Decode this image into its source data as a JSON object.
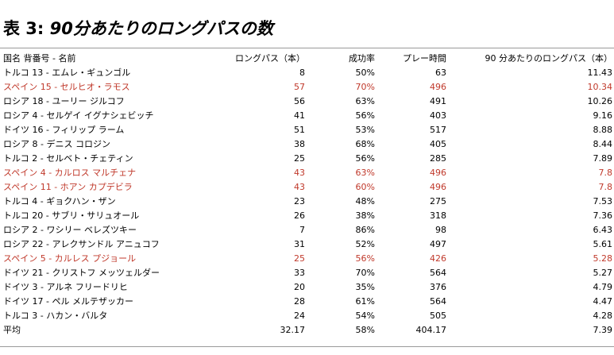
{
  "title": {
    "prefix": "表 3:",
    "number": "90",
    "text": "分あたりのロングパスの数"
  },
  "table": {
    "headers": {
      "player": "国名 背番号 - 名前",
      "long_passes": "ロングパス（本）",
      "success_rate": "成功率",
      "play_time": "プレー時間",
      "per90": "90 分あたりのロングパス（本）"
    },
    "rows": [
      {
        "player": "トルコ 13 - エムレ・ギュンゴル",
        "long_passes": "8",
        "success_rate": "50%",
        "play_time": "63",
        "per90": "11.43",
        "highlight": false
      },
      {
        "player": "スペイン 15 - セルヒオ・ラモス",
        "long_passes": "57",
        "success_rate": "70%",
        "play_time": "496",
        "per90": "10.34",
        "highlight": true
      },
      {
        "player": "ロシア 18 - ユーリー ジルコフ",
        "long_passes": "56",
        "success_rate": "63%",
        "play_time": "491",
        "per90": "10.26",
        "highlight": false
      },
      {
        "player": "ロシア 4 - セルゲイ イグナシェビッチ",
        "long_passes": "41",
        "success_rate": "56%",
        "play_time": "403",
        "per90": "9.16",
        "highlight": false
      },
      {
        "player": "ドイツ 16 - フィリップ ラーム",
        "long_passes": "51",
        "success_rate": "53%",
        "play_time": "517",
        "per90": "8.88",
        "highlight": false
      },
      {
        "player": "ロシア 8 - デニス コロジン",
        "long_passes": "38",
        "success_rate": "68%",
        "play_time": "405",
        "per90": "8.44",
        "highlight": false
      },
      {
        "player": "トルコ 2 - セルベト・チェティン",
        "long_passes": "25",
        "success_rate": "56%",
        "play_time": "285",
        "per90": "7.89",
        "highlight": false
      },
      {
        "player": "スペイン 4 - カルロス マルチェナ",
        "long_passes": "43",
        "success_rate": "63%",
        "play_time": "496",
        "per90": "7.8",
        "highlight": true
      },
      {
        "player": "スペイン 11 - ホアン カプデビラ",
        "long_passes": "43",
        "success_rate": "60%",
        "play_time": "496",
        "per90": "7.8",
        "highlight": true
      },
      {
        "player": "トルコ 4 - ギョクハン・ザン",
        "long_passes": "23",
        "success_rate": "48%",
        "play_time": "275",
        "per90": "7.53",
        "highlight": false
      },
      {
        "player": "トルコ 20 - サブリ・サリュオール",
        "long_passes": "26",
        "success_rate": "38%",
        "play_time": "318",
        "per90": "7.36",
        "highlight": false
      },
      {
        "player": "ロシア 2 - ワシリー ベレズツキー",
        "long_passes": "7",
        "success_rate": "86%",
        "play_time": "98",
        "per90": "6.43",
        "highlight": false
      },
      {
        "player": "ロシア 22 - アレクサンドル アニュコフ",
        "long_passes": "31",
        "success_rate": "52%",
        "play_time": "497",
        "per90": "5.61",
        "highlight": false
      },
      {
        "player": "スペイン 5 - カルレス プジョール",
        "long_passes": "25",
        "success_rate": "56%",
        "play_time": "426",
        "per90": "5.28",
        "highlight": true
      },
      {
        "player": "ドイツ 21 - クリストフ メッツェルダー",
        "long_passes": "33",
        "success_rate": "70%",
        "play_time": "564",
        "per90": "5.27",
        "highlight": false
      },
      {
        "player": "ドイツ 3 - アルネ フリードリヒ",
        "long_passes": "20",
        "success_rate": "35%",
        "play_time": "376",
        "per90": "4.79",
        "highlight": false
      },
      {
        "player": "ドイツ 17 - ペル メルテザッカー",
        "long_passes": "28",
        "success_rate": "61%",
        "play_time": "564",
        "per90": "4.47",
        "highlight": false
      },
      {
        "player": "トルコ 3 - ハカン・バルタ",
        "long_passes": "24",
        "success_rate": "54%",
        "play_time": "505",
        "per90": "4.28",
        "highlight": false
      }
    ],
    "average": {
      "player": "平均",
      "long_passes": "32.17",
      "success_rate": "58%",
      "play_time": "404.17",
      "per90": "7.39"
    }
  },
  "colors": {
    "highlight_text": "#c0392b",
    "rule": "#9a9a9a"
  }
}
